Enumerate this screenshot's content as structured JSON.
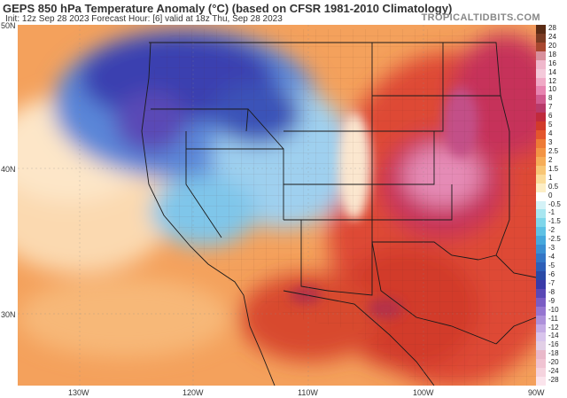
{
  "header": {
    "title": "GEPS 850 hPa Temperature Anomaly (°C) (based on CFSR 1981-2010 Climatology)",
    "subtitle": "Init: 12z Sep 28 2023   Forecast Hour: [6]   valid at 18z Thu, Sep 28 2023",
    "brand": "TROPICALTIDBITS.COM"
  },
  "map": {
    "lat_labels": [
      "50N",
      "40N",
      "30N"
    ],
    "lon_labels": [
      "130W",
      "120W",
      "110W",
      "100W",
      "90W"
    ],
    "colors": {
      "ocean_warm": "#f4a15c",
      "ocean_light": "#fbd9b0",
      "cold_core": "#3a3fb0",
      "cold_mid": "#5a86d8",
      "cold_light": "#9fd0ef",
      "warm_core": "#c6305a",
      "warm_mid": "#de4a34",
      "warm_peak": "#e58bb6"
    }
  },
  "legend": {
    "unit_range": "-28 to 28",
    "items": [
      {
        "label": "28",
        "color": "#5a2b14"
      },
      {
        "label": "24",
        "color": "#7a3a22"
      },
      {
        "label": "20",
        "color": "#a8472f"
      },
      {
        "label": "18",
        "color": "#d88f9c"
      },
      {
        "label": "16",
        "color": "#efb8cc"
      },
      {
        "label": "14",
        "color": "#f4c9da"
      },
      {
        "label": "12",
        "color": "#f0a9c6"
      },
      {
        "label": "10",
        "color": "#e784b0"
      },
      {
        "label": "8",
        "color": "#d05a8e"
      },
      {
        "label": "7",
        "color": "#b83a6a"
      },
      {
        "label": "6",
        "color": "#c02a3c"
      },
      {
        "label": "5",
        "color": "#d23a2a"
      },
      {
        "label": "4",
        "color": "#e4552c"
      },
      {
        "label": "3",
        "color": "#ee7a35"
      },
      {
        "label": "2.5",
        "color": "#f39444"
      },
      {
        "label": "2",
        "color": "#f6ad58"
      },
      {
        "label": "1.5",
        "color": "#f8c675"
      },
      {
        "label": "1",
        "color": "#fbdc9a"
      },
      {
        "label": "0.5",
        "color": "#fdeec5"
      },
      {
        "label": "0",
        "color": "#ffffff"
      },
      {
        "label": "-0.5",
        "color": "#d4f2f7"
      },
      {
        "label": "-1",
        "color": "#a8e6f0"
      },
      {
        "label": "-1.5",
        "color": "#7fd6ea"
      },
      {
        "label": "-2",
        "color": "#5ec1e4"
      },
      {
        "label": "-2.5",
        "color": "#46a8dc"
      },
      {
        "label": "-3",
        "color": "#3b8fd2"
      },
      {
        "label": "-4",
        "color": "#3476c6"
      },
      {
        "label": "-5",
        "color": "#2e5fb8"
      },
      {
        "label": "-6",
        "color": "#2a4aa6"
      },
      {
        "label": "-7",
        "color": "#3a3aa8"
      },
      {
        "label": "-8",
        "color": "#5a48b6"
      },
      {
        "label": "-9",
        "color": "#7a5cc4"
      },
      {
        "label": "-10",
        "color": "#9575d0"
      },
      {
        "label": "-11",
        "color": "#ad90da"
      },
      {
        "label": "-12",
        "color": "#c4abe4"
      },
      {
        "label": "-14",
        "color": "#d8c4ec"
      },
      {
        "label": "-16",
        "color": "#e2cfe6"
      },
      {
        "label": "-18",
        "color": "#e9b8c9"
      },
      {
        "label": "-20",
        "color": "#f0c3d2"
      },
      {
        "label": "-24",
        "color": "#f5d3de"
      },
      {
        "label": "-28",
        "color": "#fbe4ec"
      }
    ]
  }
}
